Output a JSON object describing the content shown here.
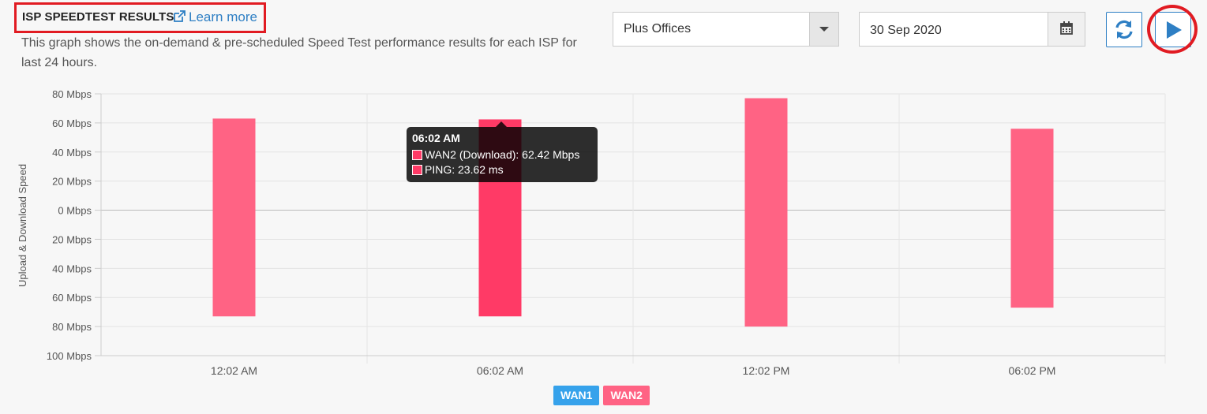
{
  "header": {
    "title": "ISP SPEEDTEST RESULTS",
    "learn_more": "Learn more",
    "description": "This graph shows the on-demand & pre-scheduled Speed Test performance results for each ISP for last 24 hours."
  },
  "controls": {
    "site_select": "Plus Offices",
    "date": "30 Sep 2020",
    "refresh_icon": "refresh-icon",
    "run_icon": "play-icon",
    "calendar_icon": "calendar-icon"
  },
  "tooltip": {
    "title": "06:02 AM",
    "line1": "WAN2 (Download): 62.42 Mbps",
    "line2": "PING: 23.62 ms"
  },
  "colors": {
    "accent": "#2e7fc4",
    "wan1": "#36a2eb",
    "wan2": "#ff6384",
    "wan2_hover": "#ff3a66",
    "highlight": "#e11b22"
  },
  "chart_data": {
    "type": "bar",
    "ylabel": "Upload & Download Speed",
    "y_ticks": [
      "80 Mbps",
      "60 Mbps",
      "40 Mbps",
      "20 Mbps",
      "0 Mbps",
      "20 Mbps",
      "40 Mbps",
      "60 Mbps",
      "80 Mbps",
      "100 Mbps"
    ],
    "ylim": [
      -100,
      80
    ],
    "categories": [
      "12:02 AM",
      "06:02 AM",
      "12:02 PM",
      "06:02 PM"
    ],
    "series": [
      {
        "name": "WAN1",
        "download": [
          0,
          0,
          0,
          0
        ],
        "upload": [
          0,
          0,
          0,
          0
        ]
      },
      {
        "name": "WAN2",
        "download": [
          63,
          62.42,
          77,
          56
        ],
        "upload": [
          -73,
          -73,
          -80,
          -67
        ]
      }
    ],
    "highlighted_index": 1,
    "legend": [
      "WAN1",
      "WAN2"
    ],
    "legend_position": "bottom"
  }
}
